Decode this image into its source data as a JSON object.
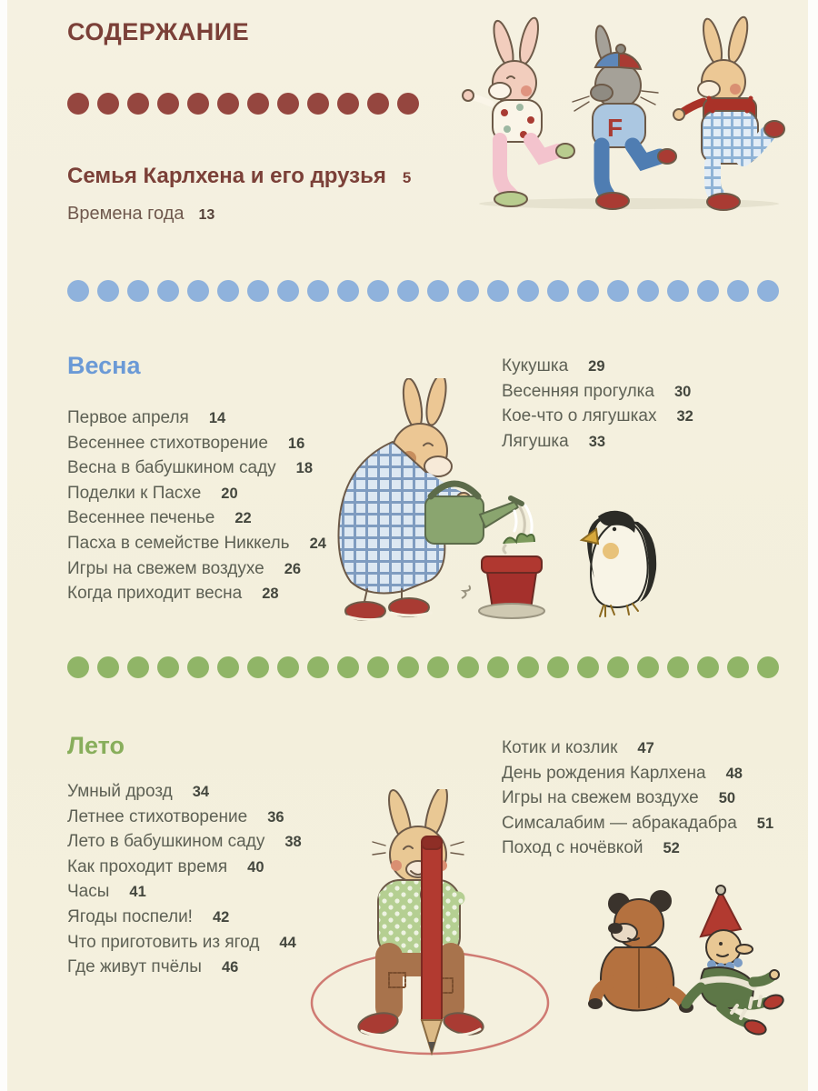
{
  "page": {
    "title": "СОДЕРЖАНИЕ",
    "background": "#f4f0de"
  },
  "colors": {
    "title_maroon": "#7b4038",
    "red_dot": "#95463f",
    "blue_heading": "#6b9ad6",
    "blue_dot": "#8fb2dc",
    "green_heading": "#88ae5b",
    "green_dot": "#90b567",
    "list_text": "#5d6054",
    "list_number": "#44473e"
  },
  "intro": {
    "dots": {
      "count": 12,
      "color": "#95463f"
    },
    "entries": [
      {
        "label": "Семья Карлхена и его друзья",
        "page": "5"
      },
      {
        "label": "Времена года",
        "page": "13"
      }
    ]
  },
  "sections": [
    {
      "id": "spring",
      "heading": "Весна",
      "dots": {
        "count": 24,
        "color": "#8fb2dc"
      },
      "left_items": [
        {
          "label": "Первое апреля",
          "page": "14"
        },
        {
          "label": "Весеннее стихотворение",
          "page": "16"
        },
        {
          "label": "Весна в бабушкином саду",
          "page": "18"
        },
        {
          "label": "Поделки к Пасхе",
          "page": "20"
        },
        {
          "label": "Весеннее печенье",
          "page": "22"
        },
        {
          "label": "Пасха в семействе Никкель",
          "page": "24"
        },
        {
          "label": "Игры на свежем воздухе",
          "page": "26"
        },
        {
          "label": "Когда приходит весна",
          "page": "28"
        }
      ],
      "right_items": [
        {
          "label": "Кукушка",
          "page": "29"
        },
        {
          "label": "Весенняя прогулка",
          "page": "30"
        },
        {
          "label": "Кое-что о лягушках",
          "page": "32"
        },
        {
          "label": "Лягушка",
          "page": "33"
        }
      ]
    },
    {
      "id": "summer",
      "heading": "Лето",
      "dots": {
        "count": 24,
        "color": "#90b567"
      },
      "left_items": [
        {
          "label": "Умный дрозд",
          "page": "34"
        },
        {
          "label": "Летнее стихотворение",
          "page": "36"
        },
        {
          "label": "Лето в бабушкином саду",
          "page": "38"
        },
        {
          "label": "Как проходит время",
          "page": "40"
        },
        {
          "label": "Часы",
          "page": "41"
        },
        {
          "label": "Ягоды поспели!",
          "page": "42"
        },
        {
          "label": "Что приготовить из ягод",
          "page": "44"
        },
        {
          "label": "Где живут пчёлы",
          "page": "46"
        }
      ],
      "right_items": [
        {
          "label": "Котик и козлик",
          "page": "47"
        },
        {
          "label": "День рождения Карлхена",
          "page": "48"
        },
        {
          "label": "Игры на свежем воздухе",
          "page": "50"
        },
        {
          "label": "Симсалабим — абракадабра",
          "page": "51"
        },
        {
          "label": "Поход с ночёвкой",
          "page": "52"
        }
      ]
    }
  ],
  "illustrations": {
    "top": "three-friends-marching-illustration",
    "middle": "rabbit-watering-pot-illustration",
    "middle_companion": "penguin-illustration",
    "bottom": "rabbit-with-giant-pencil-illustration",
    "bottom_toys": "teddy-bear-and-puppet-illustration",
    "letter_on_sweater": "F"
  }
}
